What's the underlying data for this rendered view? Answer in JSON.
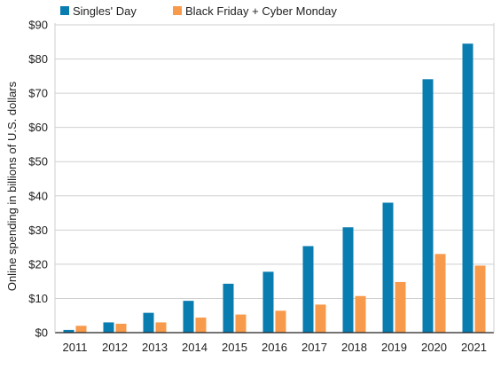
{
  "chart_data": {
    "type": "bar",
    "categories": [
      "2011",
      "2012",
      "2013",
      "2014",
      "2015",
      "2016",
      "2017",
      "2018",
      "2019",
      "2020",
      "2021"
    ],
    "series": [
      {
        "name": "Singles' Day",
        "color": "#0a7db0",
        "values": [
          0.8,
          3.0,
          5.8,
          9.3,
          14.3,
          17.8,
          25.3,
          30.8,
          38.0,
          74.1,
          84.5
        ]
      },
      {
        "name": "Black Friday + Cyber Monday",
        "color": "#f79a4c",
        "values": [
          2.0,
          2.6,
          3.0,
          4.4,
          5.3,
          6.4,
          8.2,
          10.7,
          14.8,
          23.0,
          19.6
        ]
      }
    ],
    "title": "",
    "xlabel": "",
    "ylabel": "Online spending in billions of U.S. dollars",
    "ylim": [
      0,
      90
    ],
    "yticks": [
      {
        "value": 0,
        "label": "$0"
      },
      {
        "value": 10,
        "label": "$10"
      },
      {
        "value": 20,
        "label": "$20"
      },
      {
        "value": 30,
        "label": "$30"
      },
      {
        "value": 40,
        "label": "$40"
      },
      {
        "value": 50,
        "label": "$50"
      },
      {
        "value": 60,
        "label": "$60"
      },
      {
        "value": 70,
        "label": "$70"
      },
      {
        "value": 80,
        "label": "$80"
      },
      {
        "value": 90,
        "label": "$90"
      }
    ],
    "grid": true,
    "legend_position": "top-left"
  }
}
